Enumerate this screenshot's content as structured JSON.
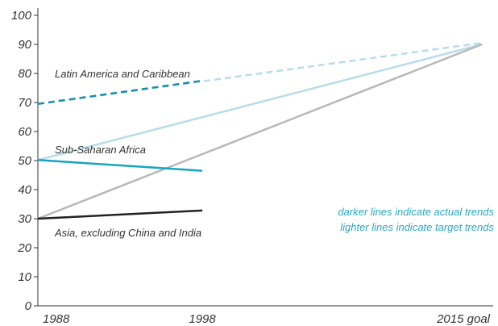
{
  "chart_data": {
    "type": "line",
    "title": "",
    "xlabel": "",
    "ylabel": "",
    "x_categories": [
      "1988",
      "1998",
      "2015 goal"
    ],
    "x_positions": [
      1988,
      1998,
      2015
    ],
    "ylim": [
      0,
      100
    ],
    "yticks": [
      0,
      10,
      20,
      30,
      40,
      50,
      60,
      70,
      80,
      90,
      100
    ],
    "grid": false,
    "series": [
      {
        "name": "Latin America and Caribbean",
        "actual": {
          "x": [
            1988,
            1998
          ],
          "y": [
            69.5,
            77.5
          ],
          "color": "#1a8fa8",
          "style": "dashed"
        },
        "target": {
          "x": [
            1988,
            2015
          ],
          "y": [
            69.5,
            90.5
          ],
          "color": "#b8dde8",
          "style": "dashed"
        }
      },
      {
        "name": "Sub-Saharan Africa",
        "actual": {
          "x": [
            1988,
            1998
          ],
          "y": [
            50.2,
            46.5
          ],
          "color": "#17a5c0",
          "style": "solid"
        },
        "target": {
          "x": [
            1988,
            2015
          ],
          "y": [
            50.2,
            90
          ],
          "color": "#b8dde8",
          "style": "solid"
        }
      },
      {
        "name": "Asia, excluding China and India",
        "actual": {
          "x": [
            1988,
            1998
          ],
          "y": [
            30,
            32.8
          ],
          "color": "#222222",
          "style": "solid"
        },
        "target": {
          "x": [
            1988,
            2015
          ],
          "y": [
            30,
            90
          ],
          "color": "#b8b8b8",
          "style": "solid"
        }
      }
    ],
    "annotations": [
      {
        "text": "darker lines indicate actual trends",
        "color": "#2aa8c4"
      },
      {
        "text": "lighter lines indicate target trends",
        "color": "#2aa8c4"
      }
    ]
  }
}
